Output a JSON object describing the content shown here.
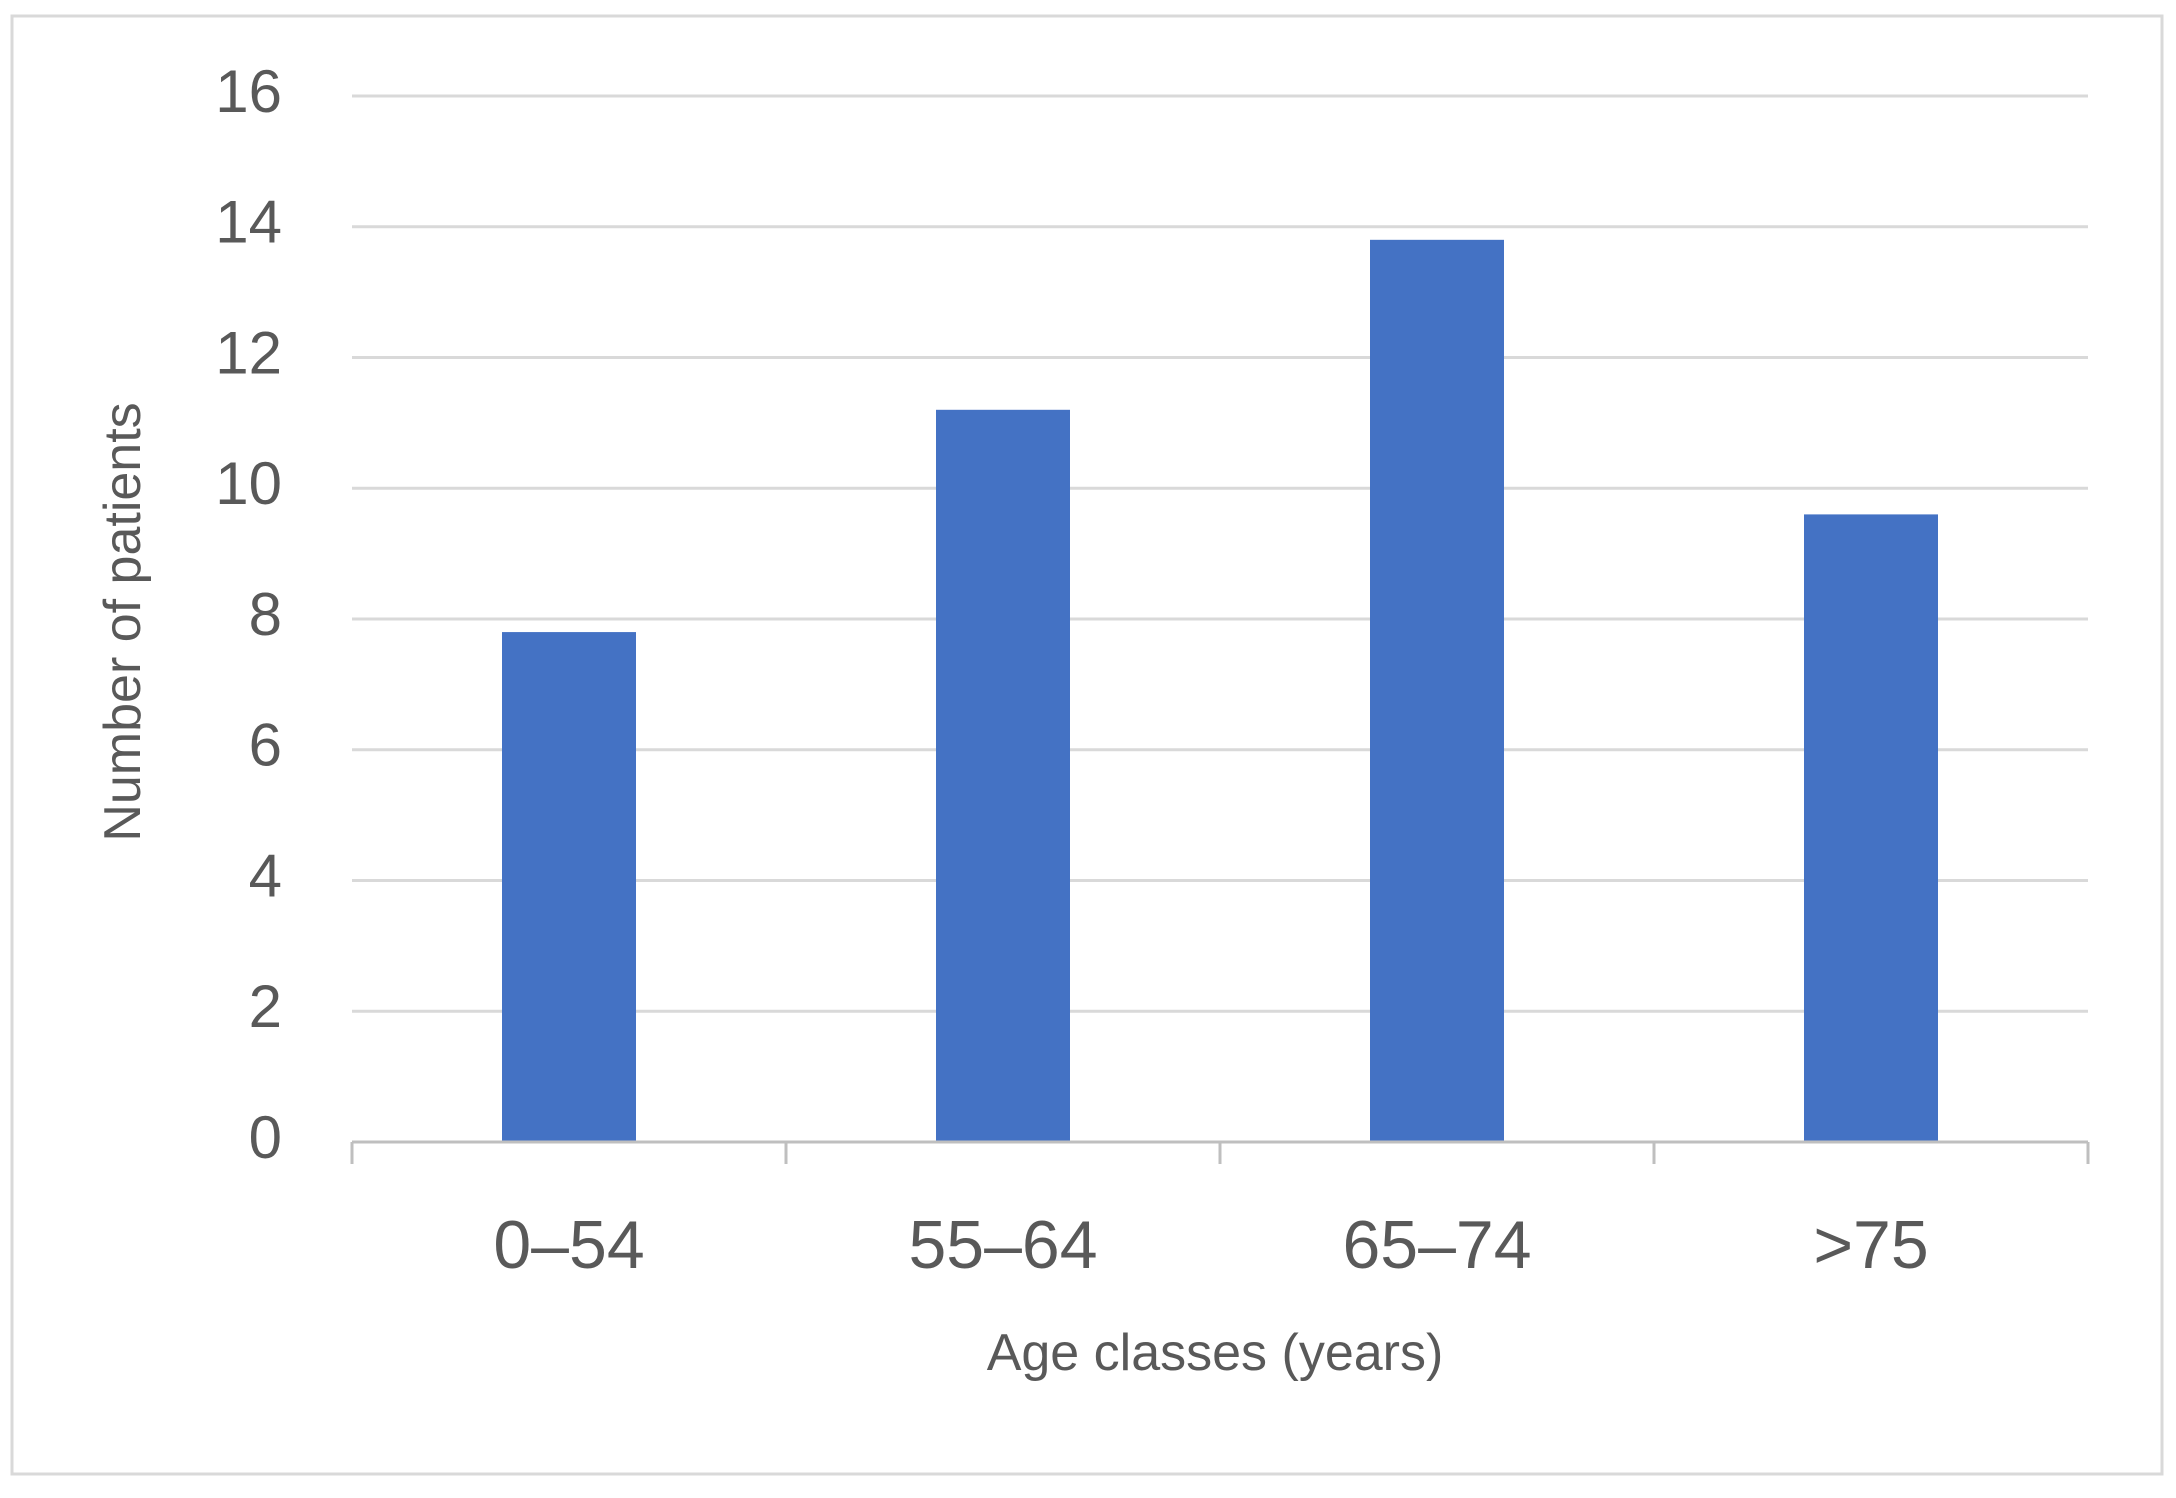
{
  "chart_data": {
    "type": "bar",
    "title": "",
    "xlabel": "Age classes (years)",
    "ylabel": "Number of patients",
    "categories": [
      "0–54",
      "55–64",
      "65–74",
      ">75"
    ],
    "values": [
      7.8,
      11.2,
      13.8,
      9.6
    ],
    "ylim": [
      0,
      16
    ],
    "yticks": [
      "0",
      "2",
      "4",
      "6",
      "8",
      "10",
      "12",
      "14",
      "16"
    ],
    "grid": true,
    "legend": "none",
    "bar_color": "#4472C4"
  }
}
